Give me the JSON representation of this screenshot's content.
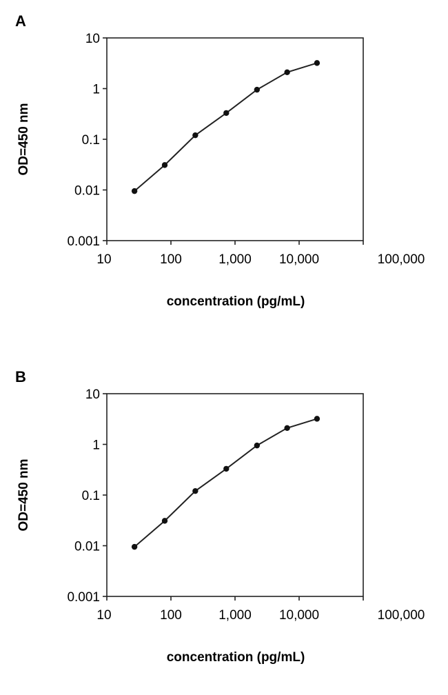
{
  "chart_data": [
    {
      "panel_label": "A",
      "type": "line",
      "x_scale": "log",
      "y_scale": "log",
      "xlabel": "concentration (pg/mL)",
      "ylabel": "OD=450 nm",
      "xlim": [
        10,
        100000
      ],
      "ylim": [
        0.001,
        10
      ],
      "x_ticks": [
        "10",
        "100",
        "1,000",
        "10,000",
        "100,000"
      ],
      "y_ticks": [
        "0.001",
        "0.01",
        "0.1",
        "1",
        "10"
      ],
      "grid": false,
      "series": [
        {
          "x": [
            27,
            80,
            240,
            730,
            2200,
            6500,
            19000
          ],
          "y": [
            0.0095,
            0.031,
            0.12,
            0.33,
            0.95,
            2.1,
            3.2
          ]
        }
      ]
    },
    {
      "panel_label": "B",
      "type": "line",
      "x_scale": "log",
      "y_scale": "log",
      "xlabel": "concentration (pg/mL)",
      "ylabel": "OD=450 nm",
      "xlim": [
        10,
        100000
      ],
      "ylim": [
        0.001,
        10
      ],
      "x_ticks": [
        "10",
        "100",
        "1,000",
        "10,000",
        "100,000"
      ],
      "y_ticks": [
        "0.001",
        "0.01",
        "0.1",
        "1",
        "10"
      ],
      "grid": false,
      "series": [
        {
          "x": [
            27,
            80,
            240,
            730,
            2200,
            6500,
            19000
          ],
          "y": [
            0.0095,
            0.031,
            0.12,
            0.33,
            0.95,
            2.1,
            3.2
          ]
        }
      ]
    }
  ]
}
